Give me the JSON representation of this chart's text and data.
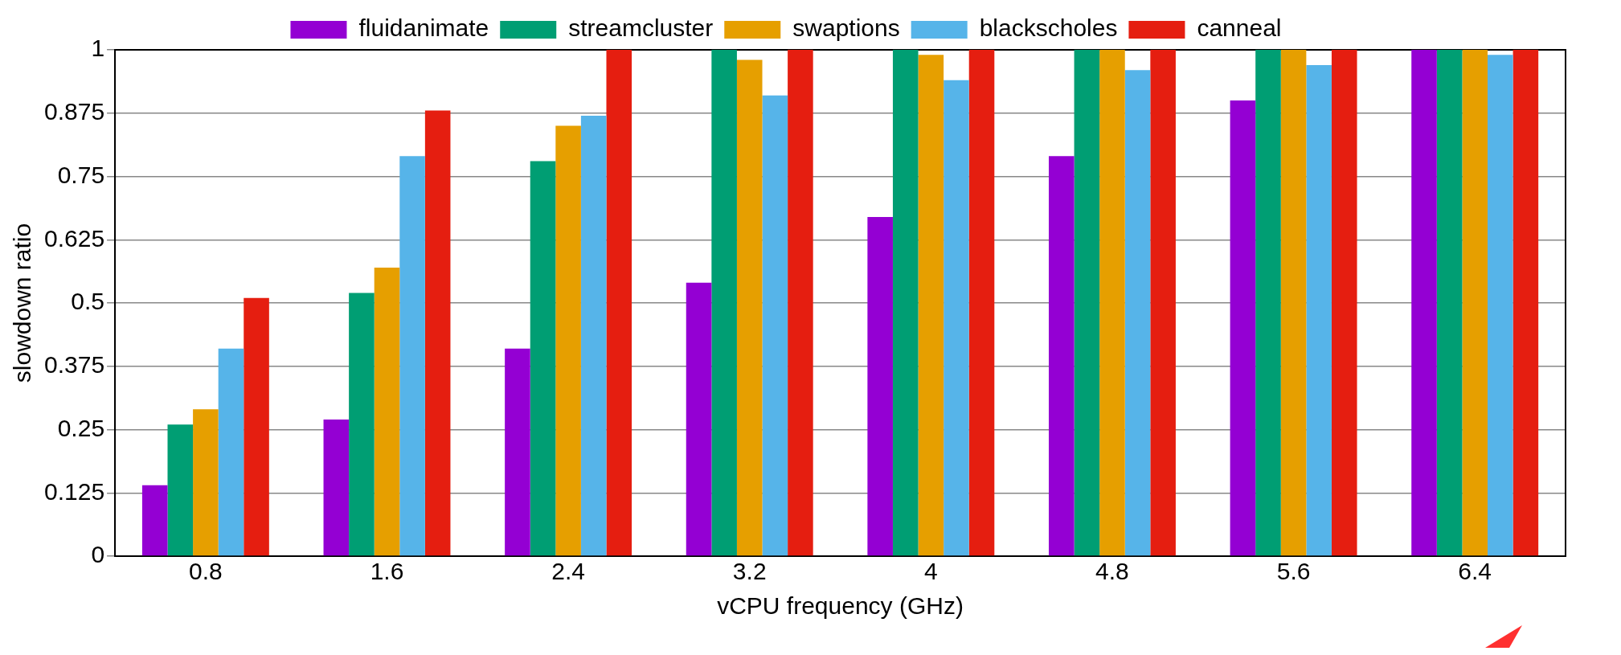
{
  "chart_data": {
    "type": "bar",
    "xlabel": "vCPU frequency (GHz)",
    "ylabel": "slowdown ratio",
    "categories": [
      "0.8",
      "1.6",
      "2.4",
      "3.2",
      "4",
      "4.8",
      "5.6",
      "6.4"
    ],
    "series": [
      {
        "name": "fluidanimate",
        "color": "#9400d3",
        "values": [
          0.14,
          0.27,
          0.41,
          0.54,
          0.67,
          0.79,
          0.9,
          1
        ]
      },
      {
        "name": "streamcluster",
        "color": "#009e73",
        "values": [
          0.26,
          0.52,
          0.78,
          1,
          1,
          1,
          1,
          1
        ]
      },
      {
        "name": "swaptions",
        "color": "#e69f00",
        "values": [
          0.29,
          0.57,
          0.85,
          0.98,
          0.99,
          1,
          1,
          1
        ]
      },
      {
        "name": "blackscholes",
        "color": "#56b4e9",
        "values": [
          0.41,
          0.79,
          0.87,
          0.91,
          0.94,
          0.96,
          0.97,
          0.99
        ]
      },
      {
        "name": "canneal",
        "color": "#e51e10",
        "values": [
          0.51,
          0.88,
          1,
          1,
          1,
          1,
          1,
          1
        ]
      }
    ],
    "ylim": [
      0,
      1
    ],
    "yticks": [
      0,
      0.125,
      0.25,
      0.375,
      0.5,
      0.625,
      0.75,
      0.875,
      1
    ],
    "grid": "y",
    "legend": "top"
  }
}
